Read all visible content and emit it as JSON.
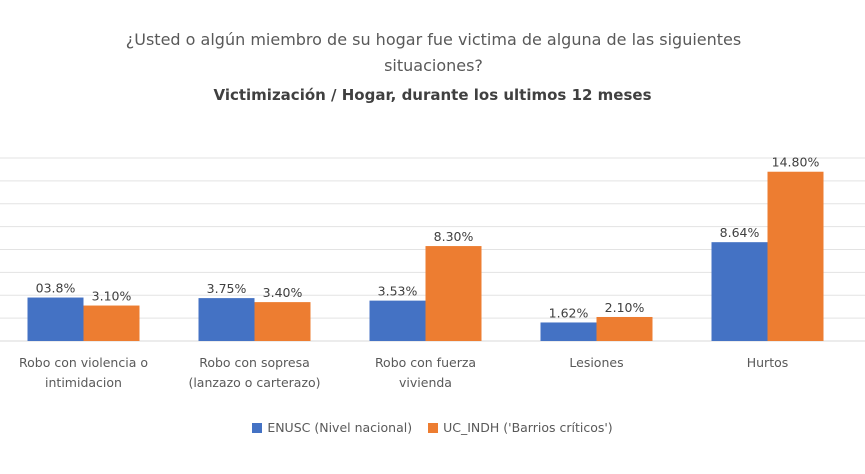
{
  "chart_data": {
    "type": "bar",
    "title": "¿Usted o algún miembro de su hogar fue victima de alguna de las siguientes situaciones?",
    "title_lines": [
      "¿Usted o algún miembro de su hogar fue victima de alguna de las siguientes",
      "situaciones?"
    ],
    "subtitle": "Victimización / Hogar, durante los ultimos 12 meses",
    "categories": [
      [
        "Robo con violencia o",
        "intimidacion"
      ],
      [
        "Robo con sopresa",
        "(lanzazo o carterazo)"
      ],
      [
        "Robo con fuerza",
        "vivienda"
      ],
      [
        "Lesiones"
      ],
      [
        "Hurtos"
      ]
    ],
    "series": [
      {
        "name": "ENUSC (Nivel nacional)",
        "color": "#4472C4",
        "values": [
          3.8,
          3.75,
          3.53,
          1.62,
          8.64
        ],
        "labels": [
          "03.8%",
          "3.75%",
          "3.53%",
          "1.62%",
          "8.64%"
        ]
      },
      {
        "name": "UC_INDH ('Barrios críticos')",
        "color": "#ED7D31",
        "values": [
          3.1,
          3.4,
          8.3,
          2.1,
          14.8
        ],
        "labels": [
          "3.10%",
          "3.40%",
          "8.30%",
          "2.10%",
          "14.80%"
        ]
      }
    ],
    "ylim": [
      0,
      16
    ],
    "grid": true,
    "legend_position": "bottom"
  }
}
